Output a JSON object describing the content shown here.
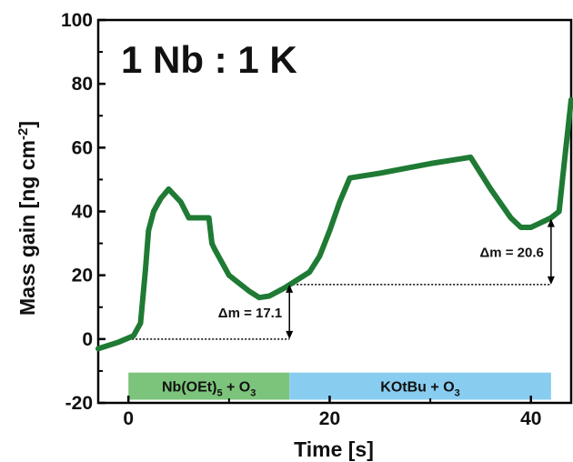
{
  "chart_data": {
    "type": "line",
    "title": "1 Nb : 1 K",
    "xlabel": "Time [s]",
    "ylabel": "Mass gain [ng cm-2]",
    "ylabel_main": "Mass gain [ng cm",
    "ylabel_sup": "-2",
    "ylabel_end": "]",
    "xlim": [
      -3,
      44
    ],
    "ylim": [
      -20,
      100
    ],
    "xticks": [
      0,
      20,
      40
    ],
    "yticks": [
      -20,
      0,
      20,
      40,
      60,
      80,
      100
    ],
    "xtick_labels": [
      "0",
      "20",
      "40"
    ],
    "ytick_labels": [
      "-20",
      "0",
      "20",
      "40",
      "60",
      "80",
      "100"
    ],
    "grid": false,
    "line_color": "#1f7a34",
    "series": [
      {
        "x": [
          -3,
          -1,
          0.5,
          1.2,
          1.7,
          2.0,
          2.5,
          3.2,
          4.0,
          4.6,
          5.2,
          6.0,
          6.8,
          7.5,
          8.0,
          8.3,
          8.6,
          10,
          12,
          13,
          14,
          15.5,
          16.5,
          18,
          19,
          20,
          21,
          22,
          25,
          30,
          34,
          36,
          38,
          39,
          40,
          41,
          42,
          42.8,
          43.3,
          44
        ],
        "y": [
          -3,
          -1,
          1,
          5,
          22,
          34,
          40,
          44,
          47,
          45,
          43,
          38,
          38,
          38,
          38,
          30,
          28,
          20,
          15,
          13,
          13.5,
          16,
          18,
          21,
          26,
          34,
          43,
          50.5,
          52,
          55,
          57,
          47,
          38,
          35,
          35,
          36.5,
          38,
          40,
          55,
          75
        ]
      }
    ],
    "phases": [
      {
        "label_main": "Nb(OEt)",
        "label_sub": "5",
        "label_tail": " + O",
        "label_sub2": "3",
        "x_start": 0,
        "x_end": 16,
        "color": "#7cc47c"
      },
      {
        "label_main": "KOtBu + O",
        "label_sub": "3",
        "x_start": 16,
        "x_end": 42,
        "color": "#88cdf0"
      }
    ],
    "annotations": [
      {
        "label": "Δm = 17.1",
        "x": 16,
        "y_from": 0,
        "y_to": 17.1,
        "ref_x_start": 0
      },
      {
        "label": "Δm = 20.6",
        "x": 42,
        "y_from": 17.1,
        "y_to": 37.7,
        "ref_x_start": 16
      }
    ]
  }
}
